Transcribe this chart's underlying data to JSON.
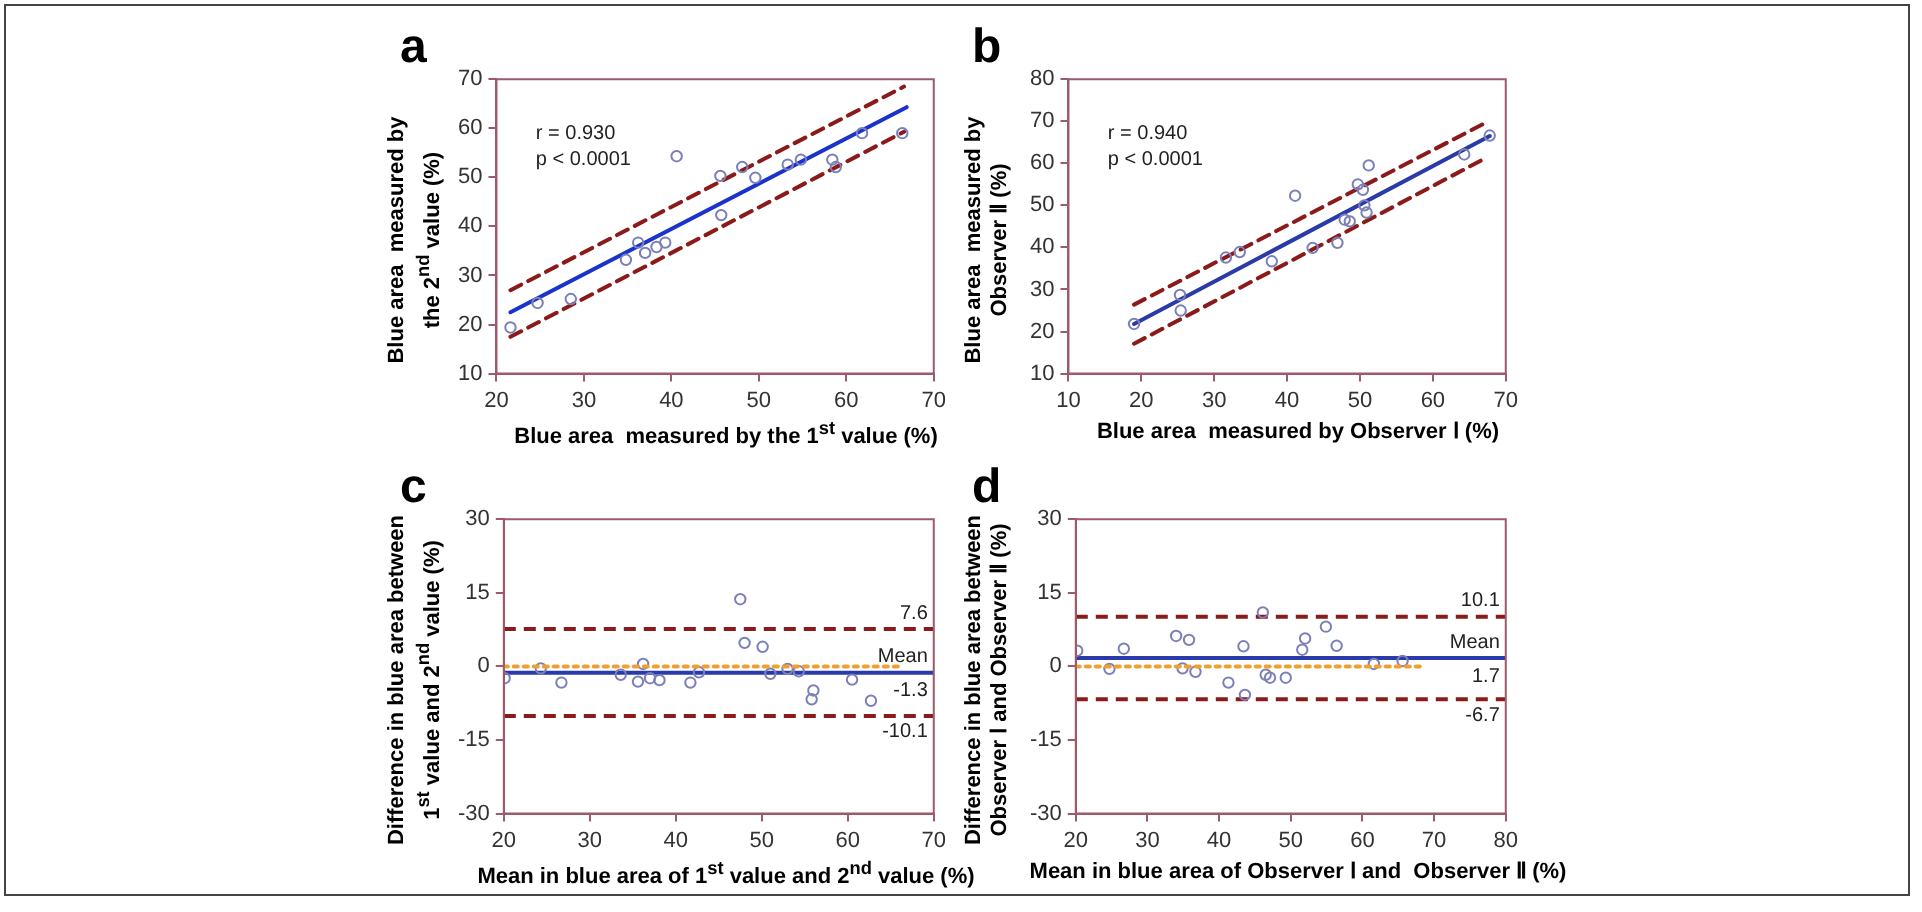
{
  "chart_data": [
    {
      "type": "scatter",
      "title": "a",
      "xlabel": "Blue area  measured by the 1$^{st}$ value (%)",
      "ylabel": "Blue area  measured by the 2$^{nd}$ value (%)",
      "xlim": [
        20,
        70
      ],
      "xticks": [
        20,
        30,
        40,
        50,
        60,
        70
      ],
      "ylim": [
        10,
        70
      ],
      "yticks": [
        10,
        20,
        30,
        40,
        50,
        60,
        70
      ],
      "annotations": [
        "r = 0.930",
        "p < 0.0001"
      ],
      "series": [
        {
          "type": "scatter",
          "marker": "circle",
          "color": "#7b80b8",
          "x": [
            21.6,
            24.7,
            28.5,
            34.8,
            36.2,
            37,
            38.3,
            39.3,
            40.6,
            45.6,
            45.7,
            48.1,
            49.6,
            53.3,
            54.8,
            58.8,
            58.4,
            61.8,
            66.4
          ],
          "values": [
            19.4,
            24.4,
            25.2,
            33.2,
            36.7,
            34.6,
            35.8,
            36.7,
            54.3,
            50.3,
            42.3,
            52.1,
            49.9,
            52.6,
            53.6,
            52.1,
            53.6,
            59,
            59
          ]
        },
        {
          "type": "line",
          "line_style": "solid",
          "color": "#1a33cc",
          "x": [
            21.6,
            66.9
          ],
          "values": [
            22.5,
            64.3
          ]
        },
        {
          "type": "line",
          "line_style": "dashed",
          "color": "#8b1a1a",
          "x": [
            21.6,
            66.6
          ],
          "values": [
            27,
            68.5
          ]
        },
        {
          "type": "line",
          "line_style": "dashed",
          "color": "#8b1a1a",
          "x": [
            21.6,
            66.6
          ],
          "values": [
            17.5,
            59.3
          ]
        }
      ]
    },
    {
      "type": "scatter",
      "title": "b",
      "xlabel": "Blue area  measured by Observer Ⅰ (%)",
      "ylabel": "Blue area  measured by Observer Ⅱ (%)",
      "xlim": [
        10,
        70
      ],
      "xticks": [
        10,
        20,
        30,
        40,
        50,
        60,
        70
      ],
      "ylim": [
        10,
        80
      ],
      "yticks": [
        10,
        20,
        30,
        40,
        50,
        60,
        70,
        80
      ],
      "annotations": [
        "r = 0.940",
        "p < 0.0001"
      ],
      "series": [
        {
          "type": "scatter",
          "marker": "circle",
          "color": "#7b80b8",
          "x": [
            19,
            25.3,
            25.4,
            31.6,
            33.5,
            37.9,
            41.1,
            43.5,
            46.9,
            47.9,
            48.6,
            49.7,
            50.4,
            50.6,
            50.9,
            51.2,
            64.3,
            67.8
          ],
          "values": [
            21.8,
            28.7,
            25,
            37.6,
            38.9,
            36.7,
            52.3,
            39.9,
            41.1,
            46.6,
            46.2,
            55,
            53.7,
            50,
            48.3,
            59.5,
            62.1,
            66.6
          ]
        },
        {
          "type": "line",
          "line_style": "solid",
          "color": "#2a3aa8",
          "x": [
            19,
            67.8
          ],
          "values": [
            21.8,
            66.5
          ]
        },
        {
          "type": "line",
          "line_style": "dashed",
          "color": "#8b1a1a",
          "x": [
            19,
            67.4
          ],
          "values": [
            26.4,
            69.8
          ]
        },
        {
          "type": "line",
          "line_style": "dashed",
          "color": "#8b1a1a",
          "x": [
            19,
            67.4
          ],
          "values": [
            17.1,
            61.4
          ]
        }
      ]
    },
    {
      "type": "scatter",
      "title": "c",
      "xlabel": "Mean in blue area of 1$^{st}$ value and 2$^{nd}$ value (%)",
      "ylabel": "Difference in blue area between 1$^{st}$ value and 2$^{nd}$ value (%)",
      "xlim": [
        20,
        70
      ],
      "xticks": [
        20,
        30,
        40,
        50,
        60,
        70
      ],
      "ylim": [
        -30,
        30
      ],
      "yticks": [
        -30,
        -15,
        0,
        15,
        30
      ],
      "annotations": [
        {
          "text": "-1.3",
          "y": -1.3
        }
      ],
      "ref_lines": [
        {
          "axis": "y",
          "value": 7.6,
          "label": "7.6",
          "color": "#8b1a1a",
          "line_style": "dashed"
        },
        {
          "axis": "y",
          "value": -1.3,
          "label": "Mean",
          "color": "#2a3aa8",
          "line_style": "solid"
        },
        {
          "axis": "y",
          "value": -10.1,
          "label": "-10.1",
          "color": "#8b1a1a",
          "line_style": "dashed"
        }
      ],
      "series": [
        {
          "type": "line",
          "line_style": "dotted",
          "color": "#f0a030",
          "x": [
            20,
            65.9
          ],
          "values": [
            0,
            0
          ]
        },
        {
          "type": "scatter",
          "marker": "circle",
          "color": "#7b80b8",
          "x": [
            20.1,
            24.3,
            26.7,
            33.6,
            35.6,
            36.2,
            37,
            38.1,
            41.7,
            42.7,
            47.5,
            48,
            50.1,
            51,
            53,
            54.3,
            55.8,
            56,
            60.5,
            62.7
          ],
          "values": [
            -2.4,
            -0.4,
            -3.3,
            -1.7,
            -3.1,
            0.5,
            -2.4,
            -2.8,
            -3.3,
            -1.2,
            13.7,
            4.8,
            4,
            -1.5,
            -0.5,
            -1,
            -6.7,
            -4.9,
            -2.7,
            -7
          ]
        }
      ]
    },
    {
      "type": "scatter",
      "title": "d",
      "xlabel": "Mean in blue area of Observer Ⅰ and  Observer Ⅱ (%)",
      "ylabel": "Difference in blue area between Observer Ⅰ and Observer Ⅱ (%)",
      "xlim": [
        20,
        80
      ],
      "xticks": [
        20,
        30,
        40,
        50,
        60,
        70,
        80
      ],
      "ylim": [
        -30,
        30
      ],
      "yticks": [
        -30,
        -15,
        0,
        15,
        30
      ],
      "annotations": [
        {
          "text": "1.7",
          "y": 1.7
        }
      ],
      "ref_lines": [
        {
          "axis": "y",
          "value": 10.1,
          "label": "10.1",
          "color": "#8b1a1a",
          "line_style": "dashed"
        },
        {
          "axis": "y",
          "value": 1.7,
          "label": "Mean",
          "color": "#2a3aa8",
          "line_style": "solid"
        },
        {
          "axis": "y",
          "value": -6.7,
          "label": "-6.7",
          "color": "#8b1a1a",
          "line_style": "dashed"
        }
      ],
      "series": [
        {
          "type": "line",
          "line_style": "dotted",
          "color": "#f0a030",
          "x": [
            20,
            68.2
          ],
          "values": [
            0,
            0
          ]
        },
        {
          "type": "scatter",
          "marker": "circle",
          "color": "#7b80b8",
          "x": [
            20.2,
            24.7,
            26.7,
            34,
            34.9,
            35.8,
            36.7,
            41.3,
            43.4,
            43.6,
            46.1,
            46.5,
            47.1,
            49.3,
            51.6,
            52,
            54.9,
            56.4,
            61.6,
            65.6
          ],
          "values": [
            3.2,
            -0.5,
            3.6,
            6.2,
            -0.4,
            5.4,
            -1.1,
            -3.3,
            4.1,
            -5.8,
            11,
            -1.7,
            -2.3,
            -2.3,
            3.4,
            5.7,
            8.1,
            4.2,
            0.5,
            1.1
          ]
        }
      ]
    }
  ]
}
